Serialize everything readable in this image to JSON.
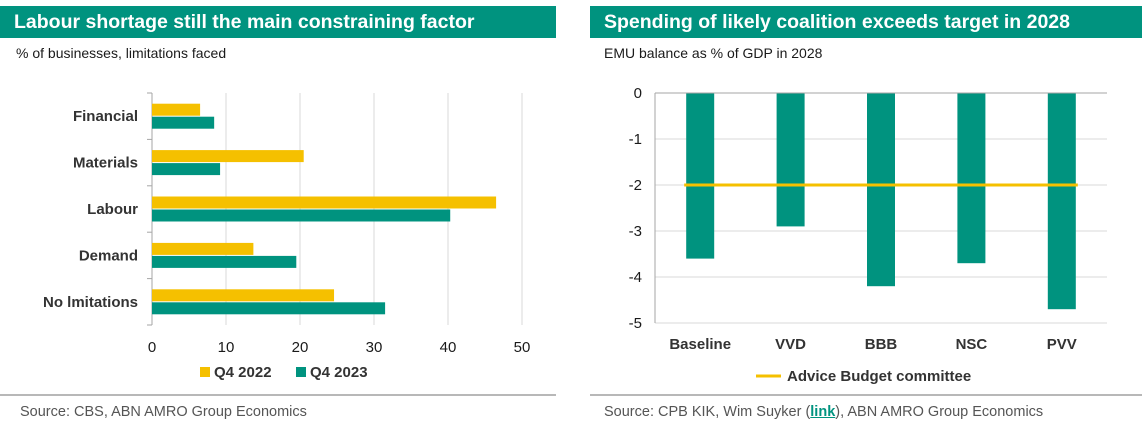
{
  "left": {
    "title": "Labour shortage still the main constraining factor",
    "subtitle": "% of businesses, limitations faced",
    "source": "Source: CBS, ABN AMRO Group Economics"
  },
  "right": {
    "title": "Spending of likely coalition exceeds target in 2028",
    "subtitle": "EMU balance as % of GDP in 2028",
    "source_prefix": "Source: CPB KIK, Wim Suyker (",
    "source_link": "link",
    "source_suffix": "), ABN AMRO Group Economics"
  },
  "colors": {
    "teal": "#00937f",
    "gold": "#f5c000",
    "grid": "#d9d9d9",
    "axis": "#a6a6a6"
  },
  "chart_data": [
    {
      "type": "bar",
      "orientation": "horizontal",
      "title": "Labour shortage still the main constraining factor",
      "subtitle": "% of businesses, limitations faced",
      "categories": [
        "Financial",
        "Materials",
        "Labour",
        "Demand",
        "No lmitations"
      ],
      "series": [
        {
          "name": "Q4 2022",
          "color": "#f5c000",
          "values": [
            6.5,
            20.5,
            46.5,
            13.7,
            24.6
          ]
        },
        {
          "name": "Q4 2023",
          "color": "#00937f",
          "values": [
            8.4,
            9.2,
            40.3,
            19.5,
            31.5
          ]
        }
      ],
      "xlim": [
        0,
        50
      ],
      "xticks": [
        0,
        10,
        20,
        30,
        40,
        50
      ],
      "grid": true,
      "legend": "bottom"
    },
    {
      "type": "bar",
      "title": "Spending of likely coalition exceeds target in 2028",
      "subtitle": "EMU balance as % of GDP in 2028",
      "categories": [
        "Baseline",
        "VVD",
        "BBB",
        "NSC",
        "PVV"
      ],
      "series": [
        {
          "name": "",
          "color": "#00937f",
          "values": [
            -3.6,
            -2.9,
            -4.2,
            -3.7,
            -4.7
          ]
        },
        {
          "name": "Advice Budget committee",
          "type": "line",
          "color": "#f5c000",
          "values": [
            -2,
            -2,
            -2,
            -2,
            -2
          ]
        }
      ],
      "ylim": [
        -5,
        0
      ],
      "yticks": [
        0,
        -1,
        -2,
        -3,
        -4,
        -5
      ],
      "grid": true,
      "legend": "bottom"
    }
  ]
}
